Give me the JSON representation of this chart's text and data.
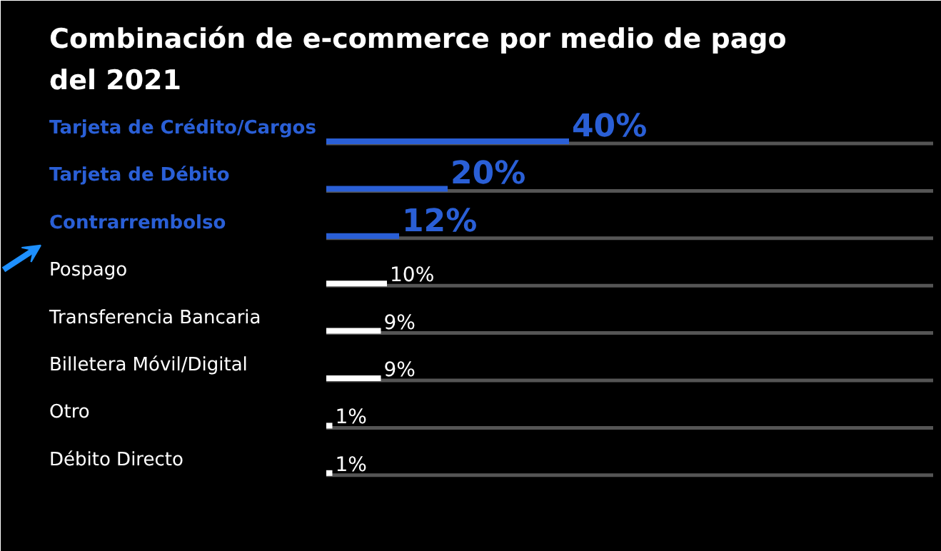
{
  "chart_data": {
    "type": "bar",
    "orientation": "horizontal",
    "relative": false,
    "title": "Combinación de e-commerce por medio de pago del 2021",
    "categories": [
      "Tarjeta de Crédito/Cargos",
      "Tarjeta de Débito",
      "Contrarrembolso",
      "Pospago",
      "Transferencia Bancaria",
      "Billetera Móvil/Digital",
      "Otro",
      "Débito Directo"
    ],
    "values": [
      40,
      20,
      12,
      10,
      9,
      9,
      1,
      1
    ],
    "colors": [
      "#2a5fd6",
      "#2a5fd6",
      "#2a5fd6",
      "#ffffff",
      "#ffffff",
      "#ffffff",
      "#ffffff",
      "#ffffff"
    ],
    "value_labels": [
      "40%",
      "20%",
      "12%",
      "10%",
      "9%",
      "9%",
      "1%",
      "1%"
    ],
    "xlim": [
      0,
      100
    ]
  }
}
